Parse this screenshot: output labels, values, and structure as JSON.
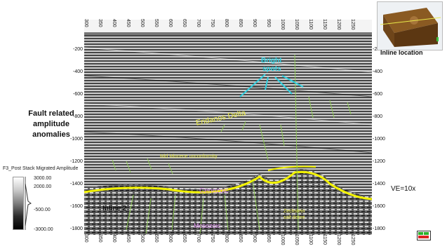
{
  "annotations": {
    "bright_spots": [
      "Bright",
      "spots"
    ],
    "eridanos": "Eridanos Delta",
    "unconformity": "Mid Miocene unconformity",
    "cenozoic": "Cenozoic",
    "mesozoic": "Mesozoic",
    "zechstein": [
      "Zechstein",
      "salt dome"
    ],
    "inline": "Inline 2",
    "ve": "VE=10x",
    "inset_caption": "Inline location"
  },
  "side_title": [
    "Fault related",
    "amplitude",
    "anomalies"
  ],
  "colorbar": {
    "title": "F3_Post Stack Migrated Amplitude",
    "ticks": [
      "3000.00",
      "2000.00",
      "-500.00",
      "-3000.00"
    ]
  },
  "axes": {
    "top_ticks": [
      "300",
      "350",
      "400",
      "450",
      "500",
      "550",
      "600",
      "650",
      "700",
      "750",
      "800",
      "850",
      "900",
      "950",
      "1000",
      "1050",
      "1100",
      "1150",
      "1200",
      "1250"
    ],
    "bottom_ticks": [
      "300",
      "350",
      "400",
      "450",
      "500",
      "550",
      "600",
      "650",
      "700",
      "750",
      "800",
      "850",
      "900",
      "950",
      "1000",
      "1050",
      "1100",
      "1150",
      "1200",
      "1250"
    ],
    "left_ticks": [
      "-200",
      "-400",
      "-600",
      "-800",
      "-1000",
      "-1200",
      "-1400",
      "-1600",
      "-1800"
    ],
    "right_ticks": [
      "-200",
      "-400",
      "-600",
      "-800",
      "-1000",
      "-1200",
      "-1400",
      "-1600",
      "-1800"
    ]
  },
  "colors": {
    "horizon_yellow": "#f2f200",
    "fault_green": "#8fd14f",
    "cyan": "#30d0e0",
    "purple_text": "#e090f0",
    "yellow_text": "#e8e84a"
  },
  "icons": {
    "legend": "legend-icon"
  }
}
